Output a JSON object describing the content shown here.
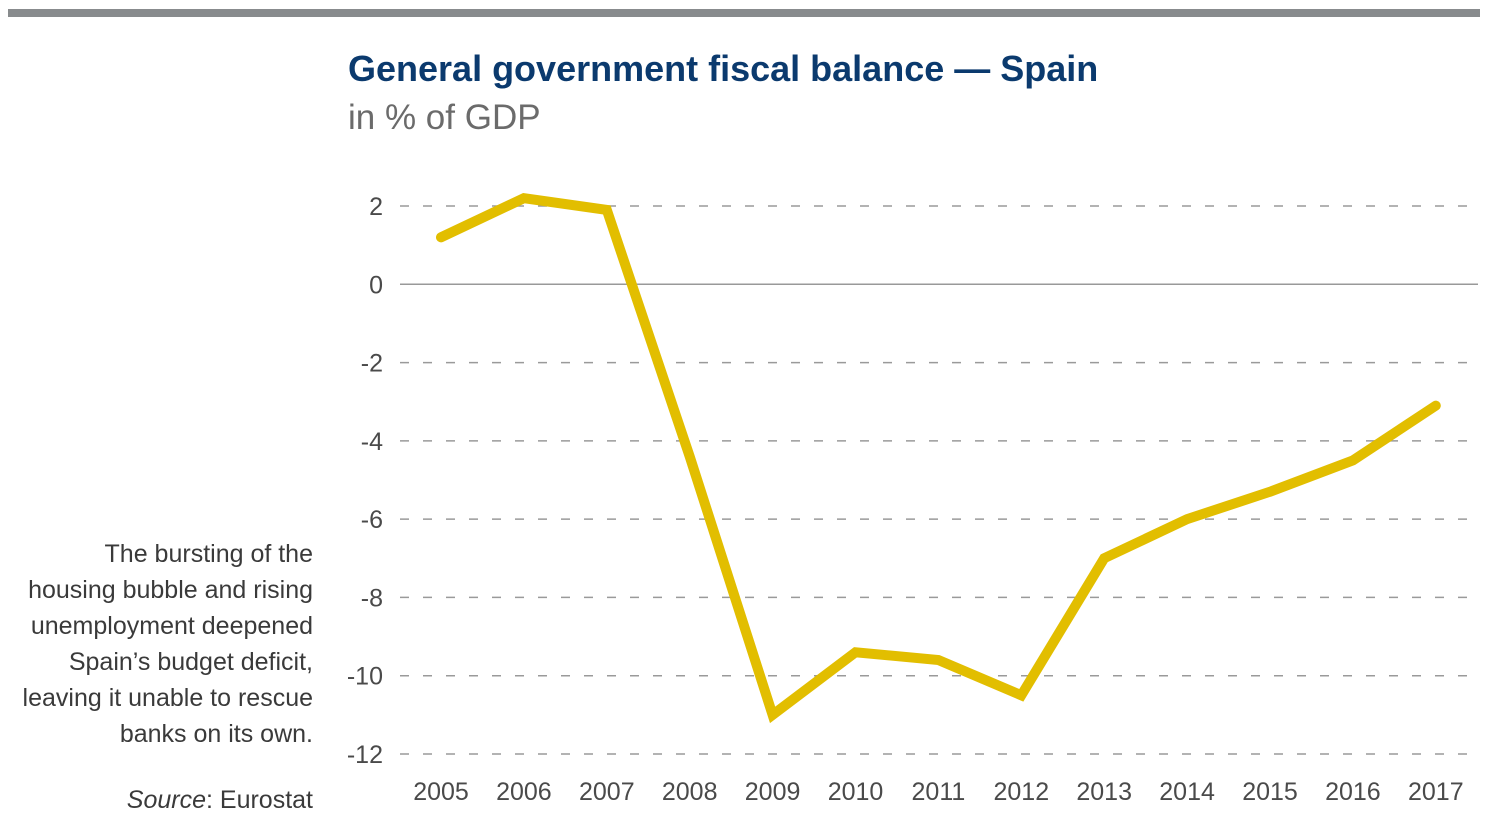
{
  "header": {
    "title": "General government fiscal balance — Spain",
    "subtitle": "in % of GDP"
  },
  "annotation": {
    "lines": [
      "The bursting of the",
      "housing bubble and rising",
      "unemployment deepened",
      "Spain’s budget deficit,",
      "leaving it unable to rescue",
      "banks on its own."
    ]
  },
  "source": {
    "label": "Source",
    "text": ": Eurostat"
  },
  "chart_data": {
    "type": "line",
    "title": "General government fiscal balance — Spain",
    "subtitle": "in % of GDP",
    "xlabel": "",
    "ylabel": "",
    "categories": [
      "2005",
      "2006",
      "2007",
      "2008",
      "2009",
      "2010",
      "2011",
      "2012",
      "2013",
      "2014",
      "2015",
      "2016",
      "2017"
    ],
    "series": [
      {
        "values": [
          1.2,
          2.2,
          1.9,
          -4.4,
          -11.0,
          -9.4,
          -9.6,
          -10.5,
          -7.0,
          -6.0,
          -5.3,
          -4.5,
          -3.1
        ]
      }
    ],
    "ylim": [
      -12,
      2
    ],
    "yticks": [
      2,
      0,
      -2,
      -4,
      -6,
      -8,
      -10,
      -12
    ],
    "grid": "dashed horizontal",
    "colors": {
      "line": "#e2be00",
      "zero_line": "#999999",
      "grid": "#9a9a9a"
    }
  }
}
